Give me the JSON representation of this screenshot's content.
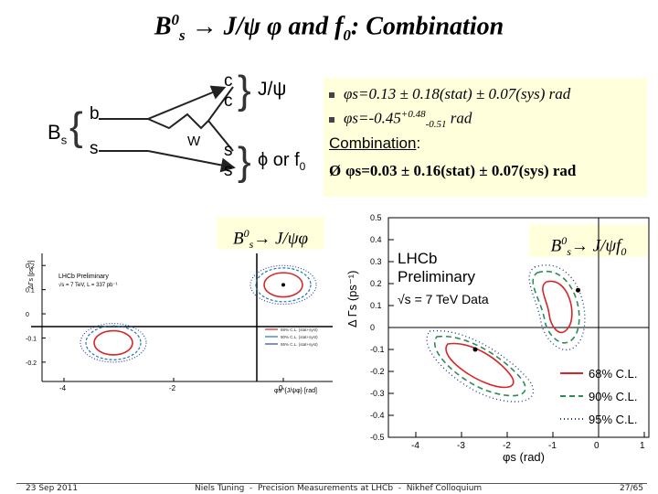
{
  "slide": {
    "title": {
      "prefix": "B",
      "sup": "0",
      "sub": "s",
      "rest1": " → J/ψ φ and f",
      "sub2": "0",
      "rest2": ": Combination"
    }
  },
  "diagram": {
    "labels": {
      "bs_main": "B",
      "bs_sub": "s",
      "quark_b": "b",
      "quark_s": "s",
      "w": "W",
      "out_c1": "c",
      "out_c2": "c",
      "out_s1": "s",
      "out_s2": "s",
      "jpsi": "J/ψ",
      "phi_or_f0": "ϕ or f",
      "f0_sub": "0"
    }
  },
  "results": {
    "line1": "φs=0.13 ± 0.18(stat) ± 0.07(sys) rad",
    "line2_base": "φs=-0.45",
    "line2_sup": "+0.48",
    "line2_sub": "-0.51",
    "line2_unit": " rad",
    "combination_label": "Combination",
    "combination_colon": ":",
    "arrow": "Ø",
    "line3": "φs=0.03 ± 0.16(stat) ± 0.07(sys) rad"
  },
  "labels": {
    "left": {
      "b": "B",
      "sup": "0",
      "sub": "s",
      "rest": "→ J/ψφ"
    },
    "right": {
      "b": "B",
      "sup": "0",
      "sub": "s",
      "rest": "→ J/ψf",
      "sub2": "0"
    }
  },
  "chart_data": [
    {
      "type": "scatter",
      "title": "LHCb Preliminary",
      "subtitle": "√s = 7 TeV, L = 337 pb⁻¹",
      "xlabel": "φs^{J/ψφ} [rad]",
      "ylabel": "ΔΓs [ps⁻¹]",
      "xlim": [
        -4.4,
        0.9
      ],
      "ylim": [
        -0.28,
        0.25
      ],
      "x_ticks": [
        "-4",
        "-2",
        "0"
      ],
      "y_ticks": [
        "0.2",
        "0.1",
        "0",
        "-0.1",
        "-0.2"
      ],
      "series": [
        {
          "name": "68% C.L. (stat+syst)",
          "color": "#d62728"
        },
        {
          "name": "90% C.L. (stat+syst)",
          "color": "#1f77b4"
        },
        {
          "name": "95% C.L. (stat+syst)",
          "color": "#3344aa"
        }
      ],
      "best_fit_points": [
        {
          "x": 0.0,
          "y": 0.12
        }
      ],
      "regions": [
        {
          "center_x": 0.0,
          "center_y": 0.12,
          "cl": "68%",
          "half_width_x": 0.35,
          "half_height_y": 0.05
        },
        {
          "center_x": 0.0,
          "center_y": 0.12,
          "cl": "90%",
          "half_width_x": 0.5,
          "half_height_y": 0.07
        },
        {
          "center_x": 0.0,
          "center_y": 0.12,
          "cl": "95%",
          "half_width_x": 0.6,
          "half_height_y": 0.08
        },
        {
          "center_x": -3.1,
          "center_y": -0.12,
          "cl": "68%",
          "half_width_x": 0.35,
          "half_height_y": 0.05
        },
        {
          "center_x": -3.1,
          "center_y": -0.12,
          "cl": "90%",
          "half_width_x": 0.5,
          "half_height_y": 0.07
        },
        {
          "center_x": -3.1,
          "center_y": -0.12,
          "cl": "95%",
          "half_width_x": 0.6,
          "half_height_y": 0.08
        }
      ]
    },
    {
      "type": "scatter",
      "title": "LHCb",
      "subtitle": "Preliminary",
      "note": "√s = 7 TeV Data",
      "xlabel": "φs (rad)",
      "ylabel": "Δ Γs (ps⁻¹)",
      "xlim": [
        -4.6,
        1.1
      ],
      "ylim": [
        -0.5,
        0.5
      ],
      "x_ticks": [
        "-4",
        "-3",
        "-2",
        "-1",
        "0",
        "1"
      ],
      "y_ticks": [
        "0.5",
        "0.4",
        "0.3",
        "0.2",
        "0.1",
        "0",
        "-0.1",
        "-0.2",
        "-0.3",
        "-0.4",
        "-0.5"
      ],
      "series": [
        {
          "name": "68% C.L.",
          "color": "#d62728",
          "style": "solid"
        },
        {
          "name": "90% C.L.",
          "color": "#2e8b57",
          "style": "dashed"
        },
        {
          "name": "95% C.L.",
          "color": "#1f3f8f",
          "style": "dotted"
        }
      ],
      "best_fit_points": [
        {
          "x": -0.45,
          "y": 0.17
        },
        {
          "x": -2.7,
          "y": -0.1
        }
      ],
      "legend_position": "bottom-right"
    }
  ],
  "footer": {
    "date": "23 Sep 2011",
    "author": "Niels Tuning",
    "sep": "-",
    "talk": "Precision Measurements at LHCb",
    "sep2": "-",
    "venue": "Nikhef Colloquium",
    "page": "27/65"
  }
}
